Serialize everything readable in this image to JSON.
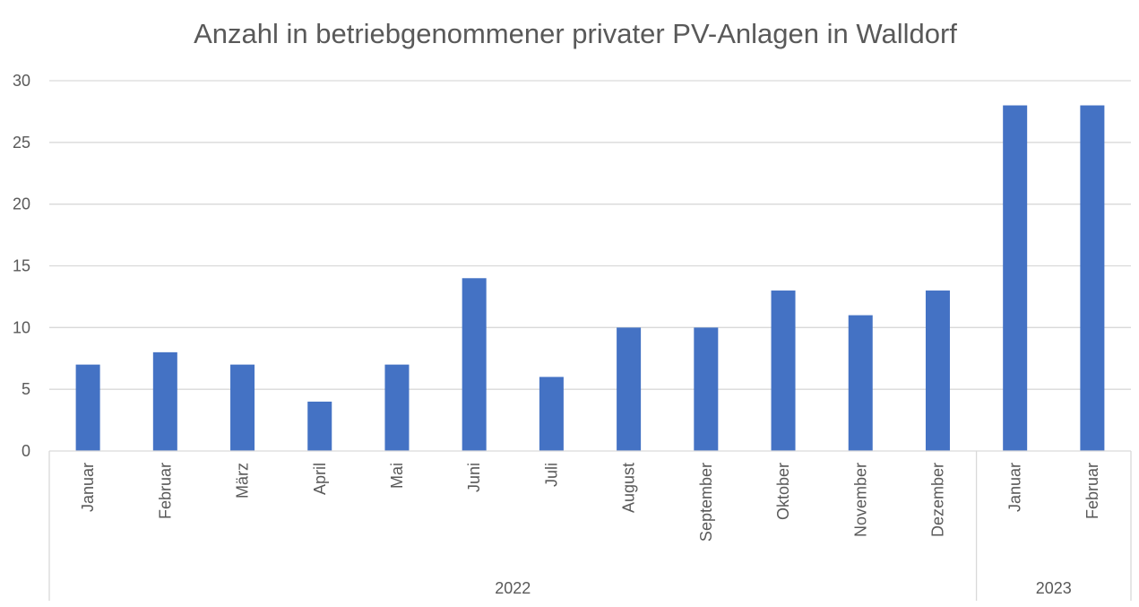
{
  "chart_data": {
    "type": "bar",
    "title": "Anzahl in betriebgenommener privater PV-Anlagen in Walldorf",
    "xlabel": "",
    "ylabel": "",
    "ylim": [
      0,
      30
    ],
    "yticks": [
      0,
      5,
      10,
      15,
      20,
      25,
      30
    ],
    "grid": true,
    "bar_color": "#4472c4",
    "categories": [
      "Januar",
      "Februar",
      "März",
      "April",
      "Mai",
      "Juni",
      "Juli",
      "August",
      "September",
      "Oktober",
      "November",
      "Dezember",
      "Januar",
      "Februar"
    ],
    "groups": [
      {
        "label": "2022",
        "count": 12
      },
      {
        "label": "2023",
        "count": 2
      }
    ],
    "values": [
      7,
      8,
      7,
      4,
      7,
      14,
      6,
      10,
      10,
      13,
      11,
      13,
      28,
      28
    ]
  }
}
